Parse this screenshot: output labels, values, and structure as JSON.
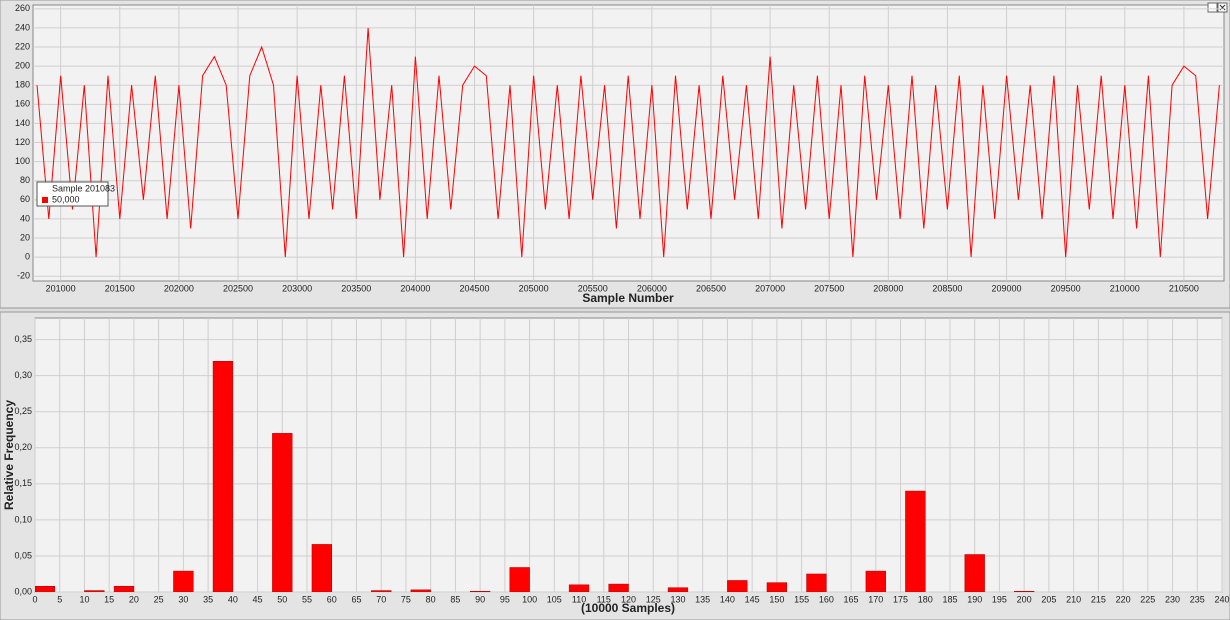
{
  "chart_data": [
    {
      "type": "line",
      "xlabel": "Sample Number",
      "color": "#ff0000",
      "tooltip": {
        "title": "Sample 201083",
        "value": "50,000"
      },
      "x": [
        200800,
        200900,
        201000,
        201100,
        201200,
        201300,
        201400,
        201500,
        201600,
        201700,
        201800,
        201900,
        202000,
        202100,
        202200,
        202300,
        202400,
        202500,
        202600,
        202700,
        202800,
        202900,
        203000,
        203100,
        203200,
        203300,
        203400,
        203500,
        203600,
        203700,
        203800,
        203900,
        204000,
        204100,
        204200,
        204300,
        204400,
        204500,
        204600,
        204700,
        204800,
        204900,
        205000,
        205100,
        205200,
        205300,
        205400,
        205500,
        205600,
        205700,
        205800,
        205900,
        206000,
        206100,
        206200,
        206300,
        206400,
        206500,
        206600,
        206700,
        206800,
        206900,
        207000,
        207100,
        207200,
        207300,
        207400,
        207500,
        207600,
        207700,
        207800,
        207900,
        208000,
        208100,
        208200,
        208300,
        208400,
        208500,
        208600,
        208700,
        208800,
        208900,
        209000,
        209100,
        209200,
        209300,
        209400,
        209500,
        209600,
        209700,
        209800,
        209900,
        210000,
        210100,
        210200,
        210300,
        210400,
        210500,
        210600,
        210700,
        210800
      ],
      "values": [
        180,
        40,
        190,
        50,
        180,
        0,
        190,
        40,
        180,
        60,
        190,
        40,
        180,
        30,
        190,
        210,
        180,
        40,
        190,
        220,
        180,
        0,
        190,
        40,
        180,
        50,
        190,
        40,
        240,
        60,
        180,
        0,
        210,
        40,
        190,
        50,
        180,
        200,
        190,
        40,
        180,
        0,
        190,
        50,
        180,
        40,
        190,
        60,
        180,
        30,
        190,
        40,
        180,
        0,
        190,
        50,
        180,
        40,
        190,
        60,
        180,
        40,
        210,
        30,
        180,
        50,
        190,
        40,
        180,
        0,
        190,
        60,
        180,
        40,
        190,
        30,
        180,
        50,
        190,
        0,
        180,
        40,
        190,
        60,
        180,
        40,
        190,
        0,
        180,
        50,
        190,
        40,
        180,
        30,
        190,
        0,
        180,
        200,
        190,
        40,
        180
      ],
      "xlim": [
        200766,
        210839
      ],
      "xticks": [
        201000,
        201500,
        202000,
        202500,
        203000,
        203500,
        204000,
        204500,
        205000,
        205500,
        206000,
        206500,
        207000,
        207500,
        208000,
        208500,
        209000,
        209500,
        210000,
        210500
      ],
      "ylim": [
        -25,
        264
      ],
      "yticks": [
        -20,
        0,
        20,
        40,
        60,
        80,
        100,
        120,
        140,
        160,
        180,
        200,
        220,
        240,
        260
      ],
      "grid": true
    },
    {
      "type": "bar",
      "xlabel": "(10000 Samples)",
      "ylabel": "Relative Frequency",
      "color": "#ff0000",
      "x": [
        2,
        12,
        18,
        30,
        38,
        50,
        58,
        70,
        78,
        90,
        98,
        110,
        118,
        130,
        142,
        150,
        158,
        170,
        178,
        190,
        200
      ],
      "values": [
        0.008,
        0.002,
        0.008,
        0.029,
        0.32,
        0.22,
        0.066,
        0.002,
        0.003,
        0.001,
        0.034,
        0.01,
        0.011,
        0.006,
        0.016,
        0.013,
        0.025,
        0.029,
        0.14,
        0.052,
        0.001
      ],
      "xlim": [
        0,
        240
      ],
      "xticks": [
        0,
        5,
        10,
        15,
        20,
        25,
        30,
        35,
        40,
        45,
        50,
        55,
        60,
        65,
        70,
        75,
        80,
        85,
        90,
        95,
        100,
        105,
        110,
        115,
        120,
        125,
        130,
        135,
        140,
        145,
        150,
        155,
        160,
        165,
        170,
        175,
        180,
        185,
        190,
        195,
        200,
        205,
        210,
        215,
        220,
        225,
        230,
        235,
        240
      ],
      "ylim": [
        0,
        0.38
      ],
      "yticks": [
        {
          "value": 0,
          "label": "0,00"
        },
        {
          "value": 0.05,
          "label": "0,05"
        },
        {
          "value": 0.1,
          "label": "0,10"
        },
        {
          "value": 0.15,
          "label": "0,15"
        },
        {
          "value": 0.2,
          "label": "0,20"
        },
        {
          "value": 0.25,
          "label": "0,25"
        },
        {
          "value": 0.3,
          "label": "0,30"
        },
        {
          "value": 0.35,
          "label": "0,35"
        }
      ],
      "grid": true
    }
  ]
}
